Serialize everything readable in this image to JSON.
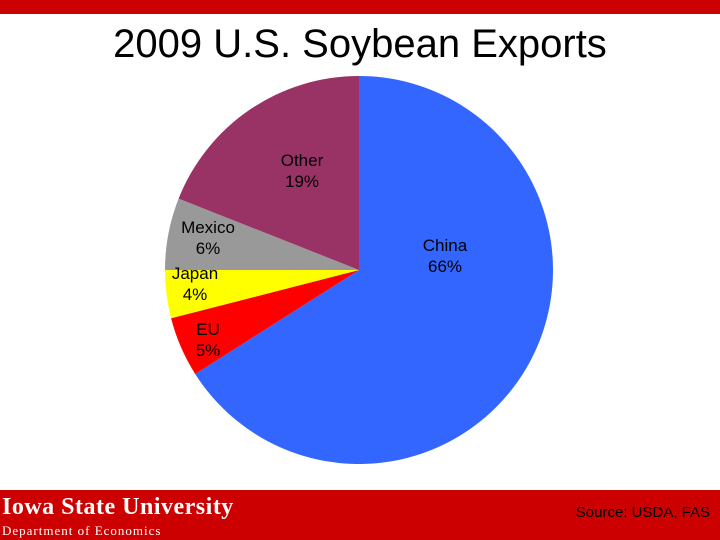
{
  "slide": {
    "title": "2009 U.S. Soybean Exports",
    "source": "Source: USDA, FAS",
    "university": "Iowa State University",
    "department": "Department of Economics",
    "accent_color": "#cc0000"
  },
  "chart_data": {
    "type": "pie",
    "title": "2009 U.S. Soybean Exports",
    "slices": [
      {
        "label": "China",
        "value": 66,
        "value_label": "66%",
        "color": "#3366ff",
        "label_color": "#000000"
      },
      {
        "label": "EU",
        "value": 5,
        "value_label": "5%",
        "color": "#ff0000",
        "label_color": "#000000"
      },
      {
        "label": "Japan",
        "value": 4,
        "value_label": "4%",
        "color": "#ffff00",
        "label_color": "#000000"
      },
      {
        "label": "Mexico",
        "value": 6,
        "value_label": "6%",
        "color": "#999999",
        "label_color": "#000000"
      },
      {
        "label": "Other",
        "value": 19,
        "value_label": "19%",
        "color": "#993366",
        "label_color": "#000000"
      }
    ]
  }
}
